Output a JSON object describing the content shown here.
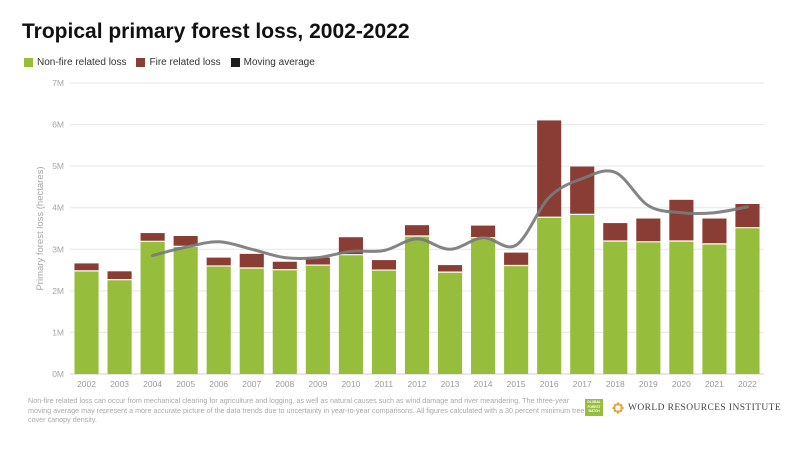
{
  "page": {
    "title": "Tropical primary forest loss, 2002-2022",
    "footnote": "Non-fire related loss can occur from mechanical clearing for agriculture and logging, as well as natural causes such as wind damage and river meandering. The three-year moving average may represent a more accurate picture of the data trends due to uncertainty in year-to-year comparisons. All figures calculated with a 30 percent minimum tree cover canopy density.",
    "logos": {
      "gfw_text": "GLOBAL FOREST WATCH",
      "wri_text": "WORLD RESOURCES INSTITUTE"
    }
  },
  "legend": [
    {
      "label": "Non-fire related loss",
      "color": "#97bd3d"
    },
    {
      "label": "Fire related loss",
      "color": "#8a3d34"
    },
    {
      "label": "Moving average",
      "color": "#1e1e1e"
    }
  ],
  "chart_data": {
    "type": "bar",
    "stacked": true,
    "title": "Tropical primary forest loss, 2002-2022",
    "ylabel": "Primary forest loss (hectares)",
    "xlabel": "",
    "ylim": [
      0,
      7000000
    ],
    "yticks": [
      0,
      1000000,
      2000000,
      3000000,
      4000000,
      5000000,
      6000000,
      7000000
    ],
    "ytick_labels": [
      "0M",
      "1M",
      "2M",
      "3M",
      "4M",
      "5M",
      "6M",
      "7M"
    ],
    "grid": true,
    "legend_position": "top-left",
    "categories": [
      "2002",
      "2003",
      "2004",
      "2005",
      "2006",
      "2007",
      "2008",
      "2009",
      "2010",
      "2011",
      "2012",
      "2013",
      "2014",
      "2015",
      "2016",
      "2017",
      "2018",
      "2019",
      "2020",
      "2021",
      "2022"
    ],
    "series": [
      {
        "name": "Non-fire related loss",
        "color": "#97bd3d",
        "values": [
          2480000,
          2270000,
          3190000,
          3070000,
          2600000,
          2550000,
          2510000,
          2620000,
          2870000,
          2500000,
          3320000,
          2450000,
          3280000,
          2610000,
          3770000,
          3840000,
          3200000,
          3180000,
          3200000,
          3130000,
          3520000
        ]
      },
      {
        "name": "Fire related loss",
        "color": "#8a3d34",
        "values": [
          180000,
          200000,
          200000,
          250000,
          200000,
          340000,
          190000,
          180000,
          420000,
          240000,
          260000,
          170000,
          290000,
          310000,
          2330000,
          1150000,
          430000,
          560000,
          990000,
          610000,
          570000
        ]
      }
    ],
    "moving_average": {
      "name": "Moving average",
      "color": "#7a7a7a",
      "x": [
        "2004",
        "2005",
        "2006",
        "2007",
        "2008",
        "2009",
        "2010",
        "2011",
        "2012",
        "2013",
        "2014",
        "2015",
        "2016",
        "2017",
        "2018",
        "2019",
        "2020",
        "2021",
        "2022"
      ],
      "values": [
        2850000,
        3050000,
        3180000,
        3000000,
        2800000,
        2800000,
        2950000,
        2970000,
        3250000,
        3000000,
        3280000,
        3100000,
        4250000,
        4700000,
        4850000,
        4050000,
        3880000,
        3880000,
        4020000
      ]
    }
  }
}
